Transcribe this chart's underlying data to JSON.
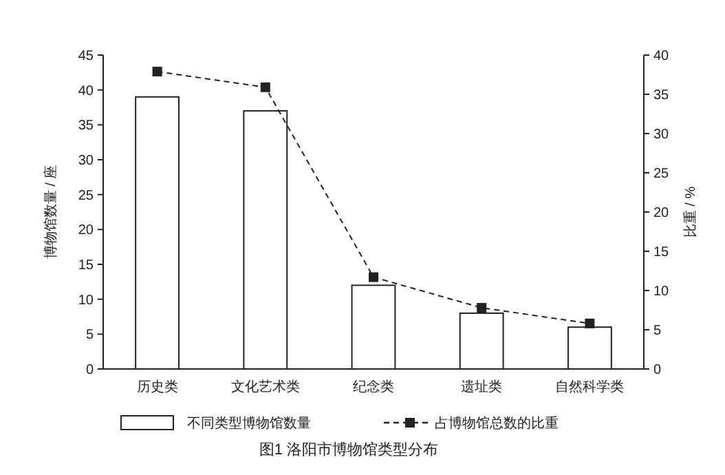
{
  "chart_data": {
    "type": "bar",
    "title": "图1 洛阳市博物馆类型分布",
    "ylabel": "博物馆数量 / 座",
    "y2label": "比重 / %",
    "categories": [
      "历史类",
      "文化艺术类",
      "纪念类",
      "遗址类",
      "自然科学类"
    ],
    "series": [
      {
        "name": "不同类型博物馆数量",
        "color": "#ffffff",
        "values": [
          39,
          37,
          12,
          8,
          6
        ]
      },
      {
        "name": "占博物馆总数的比重",
        "type": "line",
        "axis": "y2",
        "color": "#222222",
        "values": [
          37.9,
          35.9,
          11.7,
          7.8,
          5.8
        ],
        "marker": "square",
        "line_style": "dashed"
      }
    ],
    "ylim": [
      0,
      45
    ],
    "yticks": [
      0,
      5,
      10,
      15,
      20,
      25,
      30,
      35,
      40,
      45
    ],
    "y2lim": [
      0,
      40
    ],
    "y2ticks": [
      0,
      5,
      10,
      15,
      20,
      25,
      30,
      35,
      40
    ],
    "legend": "bottom",
    "grid": false
  }
}
